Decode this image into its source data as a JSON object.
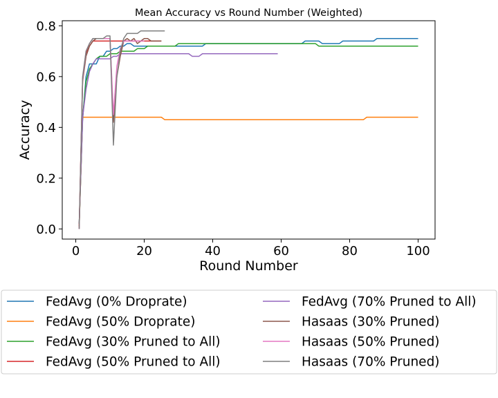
{
  "chart_data": {
    "type": "line",
    "title": "Mean Accuracy vs Round Number (Weighted)",
    "xlabel": "Round Number",
    "ylabel": "Accuracy",
    "xlim": [
      -3.95,
      104.95
    ],
    "ylim": [
      -0.04,
      0.82
    ],
    "xticks": [
      0,
      20,
      40,
      60,
      80,
      100
    ],
    "yticks": [
      0.0,
      0.2,
      0.4,
      0.6,
      0.8
    ],
    "xtick_labels": [
      "0",
      "20",
      "40",
      "60",
      "80",
      "100"
    ],
    "ytick_labels": [
      "0.0",
      "0.2",
      "0.4",
      "0.6",
      "0.8"
    ],
    "grid": false,
    "legend_position": "below",
    "series": [
      {
        "name": "FedAvg (0% Droprate)",
        "color": "#1f77b4",
        "points": [
          [
            1,
            0.02
          ],
          [
            2,
            0.43
          ],
          [
            3,
            0.6
          ],
          [
            4,
            0.65
          ],
          [
            6,
            0.65
          ],
          [
            7,
            0.68
          ],
          [
            8,
            0.68
          ],
          [
            9,
            0.7
          ],
          [
            10,
            0.7
          ],
          [
            11,
            0.71
          ],
          [
            12,
            0.71
          ],
          [
            13,
            0.72
          ],
          [
            14,
            0.72
          ],
          [
            15,
            0.73
          ],
          [
            16,
            0.73
          ],
          [
            17,
            0.72
          ],
          [
            19,
            0.72
          ],
          [
            20,
            0.72
          ],
          [
            25,
            0.72
          ],
          [
            29,
            0.72
          ],
          [
            30,
            0.72
          ],
          [
            37,
            0.72
          ],
          [
            38,
            0.73
          ],
          [
            66,
            0.73
          ],
          [
            67,
            0.74
          ],
          [
            71,
            0.74
          ],
          [
            72,
            0.73
          ],
          [
            77,
            0.73
          ],
          [
            78,
            0.74
          ],
          [
            87,
            0.74
          ],
          [
            88,
            0.75
          ],
          [
            100,
            0.75
          ]
        ]
      },
      {
        "name": "FedAvg (50% Droprate)",
        "color": "#ff7f0e",
        "points": [
          [
            1,
            0.01
          ],
          [
            2,
            0.44
          ],
          [
            25,
            0.44
          ],
          [
            26,
            0.43
          ],
          [
            84,
            0.43
          ],
          [
            85,
            0.44
          ],
          [
            100,
            0.44
          ]
        ]
      },
      {
        "name": "FedAvg (30% Pruned to All)",
        "color": "#2ca02c",
        "points": [
          [
            1,
            0.02
          ],
          [
            2,
            0.44
          ],
          [
            3,
            0.58
          ],
          [
            4,
            0.63
          ],
          [
            5,
            0.65
          ],
          [
            6,
            0.67
          ],
          [
            7,
            0.68
          ],
          [
            9,
            0.68
          ],
          [
            10,
            0.69
          ],
          [
            12,
            0.69
          ],
          [
            13,
            0.7
          ],
          [
            17,
            0.7
          ],
          [
            18,
            0.71
          ],
          [
            20,
            0.71
          ],
          [
            21,
            0.72
          ],
          [
            29,
            0.72
          ],
          [
            30,
            0.73
          ],
          [
            70,
            0.73
          ],
          [
            71,
            0.72
          ],
          [
            100,
            0.72
          ]
        ]
      },
      {
        "name": "FedAvg (50% Pruned to All)",
        "color": "#d62728",
        "points": [
          [
            1,
            0.01
          ],
          [
            2,
            0.59
          ],
          [
            3,
            0.69
          ],
          [
            4,
            0.72
          ],
          [
            5,
            0.74
          ],
          [
            10,
            0.74
          ],
          [
            11,
            0.74
          ],
          [
            25,
            0.74
          ]
        ]
      },
      {
        "name": "FedAvg (70% Pruned to All)",
        "color": "#9467bd",
        "points": [
          [
            1,
            0.02
          ],
          [
            2,
            0.44
          ],
          [
            3,
            0.55
          ],
          [
            4,
            0.62
          ],
          [
            5,
            0.65
          ],
          [
            6,
            0.67
          ],
          [
            10,
            0.67
          ],
          [
            11,
            0.68
          ],
          [
            12,
            0.68
          ],
          [
            13,
            0.69
          ],
          [
            33,
            0.69
          ],
          [
            34,
            0.68
          ],
          [
            36,
            0.68
          ],
          [
            37,
            0.69
          ],
          [
            59,
            0.69
          ]
        ]
      },
      {
        "name": "Hasaas (30% Pruned)",
        "color": "#8c564b",
        "points": [
          [
            1,
            0.0
          ],
          [
            2,
            0.58
          ],
          [
            3,
            0.68
          ],
          [
            4,
            0.72
          ],
          [
            5,
            0.74
          ],
          [
            6,
            0.75
          ],
          [
            10,
            0.75
          ],
          [
            11,
            0.42
          ],
          [
            12,
            0.6
          ],
          [
            13,
            0.68
          ],
          [
            14,
            0.74
          ],
          [
            15,
            0.75
          ],
          [
            16,
            0.74
          ],
          [
            17,
            0.75
          ],
          [
            18,
            0.73
          ],
          [
            19,
            0.74
          ],
          [
            20,
            0.75
          ],
          [
            21,
            0.75
          ],
          [
            22,
            0.74
          ],
          [
            25,
            0.74
          ]
        ]
      },
      {
        "name": "Hasaas (50% Pruned)",
        "color": "#e377c2",
        "points": [
          [
            1,
            0.0
          ],
          [
            2,
            0.59
          ],
          [
            3,
            0.7
          ],
          [
            4,
            0.73
          ],
          [
            5,
            0.75
          ],
          [
            10,
            0.75
          ],
          [
            11,
            0.45
          ],
          [
            12,
            0.64
          ],
          [
            13,
            0.71
          ],
          [
            14,
            0.74
          ],
          [
            20,
            0.74
          ]
        ]
      },
      {
        "name": "Hasaas (70% Pruned)",
        "color": "#7f7f7f",
        "points": [
          [
            1,
            0.0
          ],
          [
            2,
            0.6
          ],
          [
            3,
            0.7
          ],
          [
            4,
            0.73
          ],
          [
            5,
            0.75
          ],
          [
            8,
            0.75
          ],
          [
            9,
            0.76
          ],
          [
            10,
            0.76
          ],
          [
            11,
            0.33
          ],
          [
            12,
            0.6
          ],
          [
            13,
            0.7
          ],
          [
            14,
            0.75
          ],
          [
            15,
            0.77
          ],
          [
            18,
            0.77
          ],
          [
            19,
            0.78
          ],
          [
            26,
            0.78
          ]
        ]
      }
    ]
  }
}
